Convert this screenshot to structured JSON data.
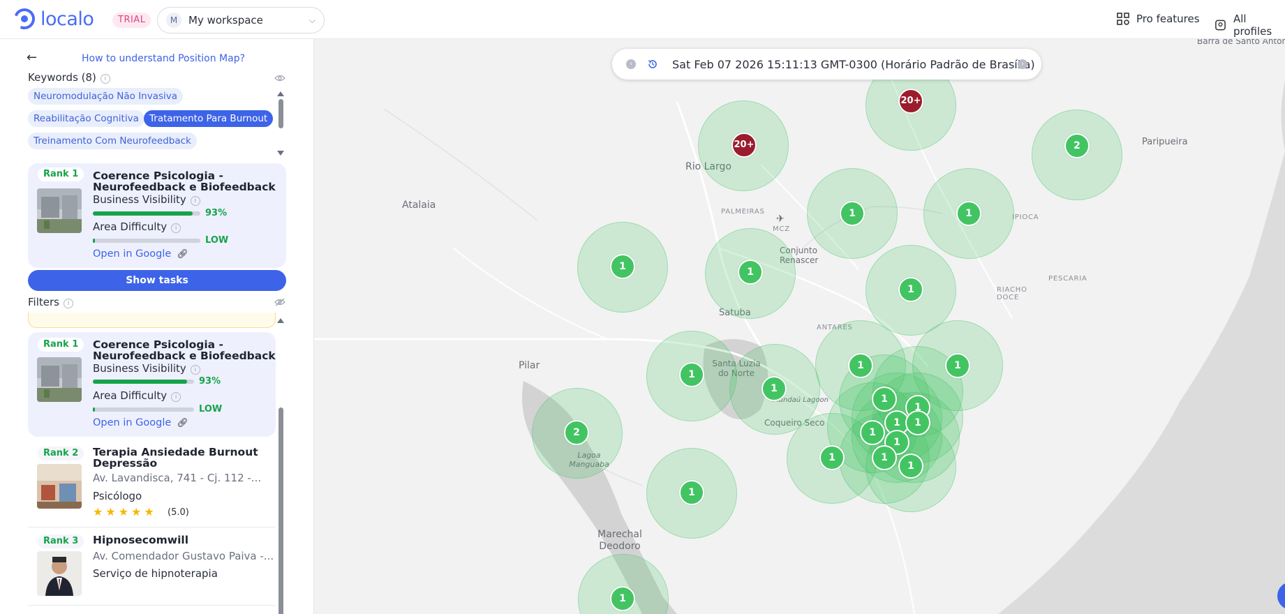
{
  "header": {
    "logo_text": "localo",
    "trial_label": "TRIAL",
    "workspace_initial": "M",
    "workspace_name": "My workspace",
    "pro_features_label": "Pro features",
    "all_profiles_label": "All profiles"
  },
  "sidebar": {
    "help_link": "How to understand Position Map?",
    "keywords_title": "Keywords (8)",
    "keywords": [
      {
        "label": "Neuromodulação Não Invasiva",
        "active": false
      },
      {
        "label": "Reabilitação Cognitiva",
        "active": false
      },
      {
        "label": "Tratamento Para Burnout",
        "active": true
      },
      {
        "label": "Treinamento Com Neurofeedback",
        "active": false
      }
    ],
    "top_card": {
      "rank": "Rank 1",
      "name": "Coerence Psicologia - Neurofeedback e Biofeedback",
      "visibility_label": "Business Visibility",
      "visibility_value": "93%",
      "visibility_fraction": 0.93,
      "difficulty_label": "Area Difficulty",
      "difficulty_value": "LOW",
      "difficulty_fraction": 0.02,
      "open_google": "Open in Google"
    },
    "show_tasks": "Show tasks",
    "filters_title": "Filters",
    "results": [
      {
        "rank": "Rank 1",
        "name": "Coerence Psicologia - Neurofeedback e Biofeedback",
        "visibility_label": "Business Visibility",
        "visibility_value": "93%",
        "difficulty_label": "Area Difficulty",
        "difficulty_value": "LOW",
        "open_google": "Open in Google"
      },
      {
        "rank": "Rank 2",
        "name": "Terapia Ansiedade Burnout Depressão",
        "address": "Av. Lavandisca, 741 - Cj. 112 -...",
        "category": "Psicólogo",
        "stars": "★★★★★",
        "rating": "(5.0)"
      },
      {
        "rank": "Rank 3",
        "name": "Hipnosecomwill",
        "address": "Av. Comendador Gustavo Paiva -...",
        "category": "Serviço de hipnoterapia"
      }
    ]
  },
  "map": {
    "date_text": "Sat Feb 07 2026 15:11:13 GMT-0300 (Horário Padrão de Brasília)",
    "labels": [
      "Barra de Santo Antônio",
      "Paripueira",
      "Rio Largo",
      "Atalaia",
      "PALMEIRAS",
      "MCZ",
      "Conjunto Renascer",
      "IPIOCA",
      "PESCARIA",
      "RIACHO DOCE",
      "Satuba",
      "ANTARES",
      "Pilar",
      "Santa Luzia do Norte",
      "Mundaú Lagoon",
      "Coqueiro Seco",
      "Lagoa Manguaba",
      "Marechal Deodoro"
    ],
    "markers": [
      "20+",
      "20+",
      "2",
      "1",
      "1",
      "1",
      "1",
      "1",
      "1",
      "1",
      "1",
      "1",
      "2",
      "1",
      "1",
      "1",
      "1",
      "1",
      "1",
      "1",
      "1",
      "1",
      "1",
      "1"
    ]
  },
  "colors": {
    "accent": "#3d63e8",
    "rank_green": "#16a34a",
    "cluster_green": "#43c463",
    "dark_red": "#9b1c2c"
  }
}
